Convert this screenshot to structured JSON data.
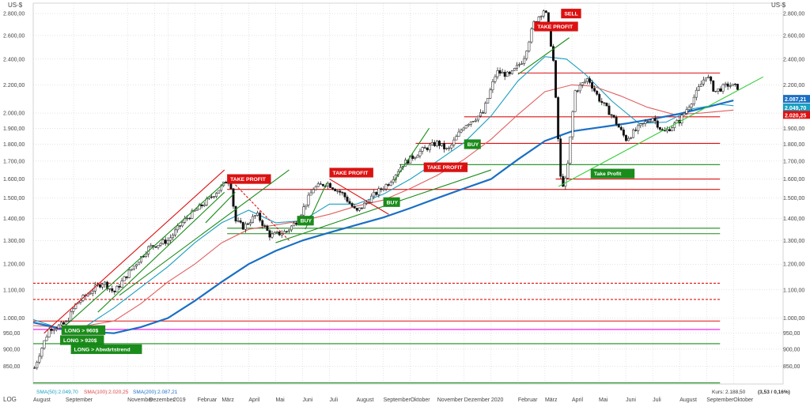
{
  "currency_label": "US-$",
  "scale_label": "LOG",
  "chart_data": {
    "type": "candlestick",
    "scale": "log",
    "ylim": [
      800,
      2900
    ],
    "y_ticks": [
      {
        "v": 800,
        "label": ""
      },
      {
        "v": 850,
        "label": "850,00"
      },
      {
        "v": 900,
        "label": "900,00"
      },
      {
        "v": 950,
        "label": "950,00"
      },
      {
        "v": 1000,
        "label": "1.000,00"
      },
      {
        "v": 1100,
        "label": "1.100,00"
      },
      {
        "v": 1200,
        "label": "1.200,00"
      },
      {
        "v": 1300,
        "label": "1.300,00"
      },
      {
        "v": 1400,
        "label": "1.400,00"
      },
      {
        "v": 1500,
        "label": "1.500,00"
      },
      {
        "v": 1600,
        "label": "1.600,00"
      },
      {
        "v": 1700,
        "label": "1.700,00"
      },
      {
        "v": 1800,
        "label": "1.800,00"
      },
      {
        "v": 1900,
        "label": "1.900,00"
      },
      {
        "v": 2000,
        "label": "2.000,00"
      },
      {
        "v": 2200,
        "label": "2.200,00"
      },
      {
        "v": 2400,
        "label": "2.400,00"
      },
      {
        "v": 2600,
        "label": "2.600,00"
      },
      {
        "v": 2800,
        "label": "2.800,00"
      }
    ],
    "x_ticks": [
      "August",
      "September",
      "November",
      "Dezember",
      "2019",
      "Februar",
      "März",
      "April",
      "Mai",
      "Juni",
      "Juli",
      "August",
      "September",
      "Oktober",
      "November",
      "Dezember",
      "2020",
      "Februar",
      "März",
      "April",
      "Mai",
      "Juni",
      "Juli",
      "August",
      "September",
      "Oktober"
    ],
    "x_tick_marks": [
      0.0,
      1.5,
      3.5,
      4.5,
      5.0,
      6.0,
      7.0,
      8.0,
      9.0,
      10.0,
      11.0,
      12.0,
      13.0,
      14.0,
      15.0,
      16.0,
      17.0,
      18.0,
      19.0,
      20.0,
      21.0,
      22.0,
      23.0,
      24.0,
      25.0,
      26.0
    ],
    "x_label_pos": [
      0.0,
      1.2,
      3.5,
      4.3,
      5.2,
      6.1,
      7.0,
      8.0,
      9.0,
      10.0,
      11.0,
      12.0,
      13.0,
      14.0,
      15.0,
      16.0,
      17.0,
      18.0,
      19.0,
      20.0,
      21.0,
      22.0,
      23.0,
      24.0,
      25.0,
      26.0
    ],
    "price_path": [
      [
        0.05,
        845
      ],
      [
        0.2,
        880
      ],
      [
        0.6,
        965
      ],
      [
        1.2,
        980
      ],
      [
        1.6,
        1050
      ],
      [
        2.2,
        1100
      ],
      [
        2.6,
        1130
      ],
      [
        3.0,
        1090
      ],
      [
        3.5,
        1160
      ],
      [
        4.3,
        1270
      ],
      [
        5.0,
        1300
      ],
      [
        5.6,
        1390
      ],
      [
        6.4,
        1480
      ],
      [
        7.0,
        1560
      ],
      [
        7.3,
        1610
      ],
      [
        7.5,
        1390
      ],
      [
        7.8,
        1360
      ],
      [
        8.3,
        1420
      ],
      [
        8.8,
        1320
      ],
      [
        9.4,
        1340
      ],
      [
        9.8,
        1390
      ],
      [
        10.4,
        1550
      ],
      [
        10.9,
        1580
      ],
      [
        11.5,
        1520
      ],
      [
        12.0,
        1430
      ],
      [
        12.6,
        1510
      ],
      [
        13.2,
        1580
      ],
      [
        13.7,
        1680
      ],
      [
        14.4,
        1760
      ],
      [
        15.0,
        1810
      ],
      [
        15.4,
        1760
      ],
      [
        16.0,
        1920
      ],
      [
        16.7,
        2000
      ],
      [
        17.2,
        2300
      ],
      [
        17.7,
        2270
      ],
      [
        18.2,
        2400
      ],
      [
        18.6,
        2720
      ],
      [
        19.0,
        2850
      ],
      [
        19.3,
        2420
      ],
      [
        19.6,
        1560
      ],
      [
        19.8,
        1600
      ],
      [
        20.1,
        2150
      ],
      [
        20.6,
        2250
      ],
      [
        21.0,
        2100
      ],
      [
        21.5,
        1980
      ],
      [
        22.0,
        1830
      ],
      [
        22.6,
        1920
      ],
      [
        23.0,
        1970
      ],
      [
        23.4,
        1870
      ],
      [
        24.0,
        1950
      ],
      [
        24.5,
        2100
      ],
      [
        25.0,
        2280
      ],
      [
        25.3,
        2150
      ],
      [
        25.8,
        2200
      ],
      [
        26.2,
        2180
      ]
    ],
    "series": [
      {
        "name": "SMA(50): 2.049,70",
        "color": "#1aa0c0",
        "values": [
          [
            0.0,
            995
          ],
          [
            1.0,
            965
          ],
          [
            2.0,
            975
          ],
          [
            3.0,
            1035
          ],
          [
            4.0,
            1110
          ],
          [
            5.0,
            1190
          ],
          [
            6.0,
            1290
          ],
          [
            7.0,
            1380
          ],
          [
            8.0,
            1440
          ],
          [
            9.0,
            1380
          ],
          [
            10.0,
            1390
          ],
          [
            11.0,
            1470
          ],
          [
            12.0,
            1470
          ],
          [
            13.0,
            1520
          ],
          [
            14.0,
            1600
          ],
          [
            15.0,
            1700
          ],
          [
            16.0,
            1810
          ],
          [
            17.0,
            1980
          ],
          [
            18.0,
            2230
          ],
          [
            19.0,
            2420
          ],
          [
            19.8,
            2400
          ],
          [
            20.5,
            2280
          ],
          [
            21.5,
            2080
          ],
          [
            22.5,
            1930
          ],
          [
            23.5,
            1940
          ],
          [
            24.5,
            2030
          ],
          [
            25.5,
            2060
          ],
          [
            26.0,
            2050
          ]
        ]
      },
      {
        "name": "SMA(100): 2.020,25",
        "color": "#e06060",
        "values": [
          [
            0.0,
            975
          ],
          [
            1.0,
            970
          ],
          [
            2.0,
            975
          ],
          [
            3.0,
            990
          ],
          [
            4.0,
            1050
          ],
          [
            5.0,
            1130
          ],
          [
            6.0,
            1200
          ],
          [
            7.0,
            1290
          ],
          [
            8.0,
            1350
          ],
          [
            9.0,
            1370
          ],
          [
            10.0,
            1390
          ],
          [
            11.0,
            1420
          ],
          [
            12.0,
            1460
          ],
          [
            13.0,
            1490
          ],
          [
            14.0,
            1550
          ],
          [
            15.0,
            1620
          ],
          [
            16.0,
            1710
          ],
          [
            17.0,
            1830
          ],
          [
            18.0,
            1990
          ],
          [
            19.0,
            2150
          ],
          [
            20.0,
            2200
          ],
          [
            20.8,
            2190
          ],
          [
            21.8,
            2120
          ],
          [
            22.8,
            2040
          ],
          [
            23.8,
            1990
          ],
          [
            24.8,
            2000
          ],
          [
            26.0,
            2020
          ]
        ]
      },
      {
        "name": "SMA(200): 2.087,21",
        "color": "#1a6fc4",
        "values": [
          [
            0.0,
            985
          ],
          [
            1.0,
            965
          ],
          [
            2.0,
            955
          ],
          [
            3.0,
            950
          ],
          [
            4.0,
            970
          ],
          [
            5.0,
            1000
          ],
          [
            6.0,
            1060
          ],
          [
            7.0,
            1130
          ],
          [
            8.0,
            1200
          ],
          [
            9.0,
            1255
          ],
          [
            10.0,
            1300
          ],
          [
            11.0,
            1335
          ],
          [
            12.0,
            1370
          ],
          [
            13.0,
            1405
          ],
          [
            14.0,
            1450
          ],
          [
            15.0,
            1500
          ],
          [
            16.0,
            1550
          ],
          [
            17.0,
            1600
          ],
          [
            18.0,
            1710
          ],
          [
            19.0,
            1820
          ],
          [
            20.0,
            1880
          ],
          [
            21.0,
            1905
          ],
          [
            22.0,
            1930
          ],
          [
            23.0,
            1960
          ],
          [
            24.0,
            1995
          ],
          [
            25.0,
            2040
          ],
          [
            26.0,
            2087
          ]
        ]
      }
    ],
    "horizontal_levels": [
      {
        "v": 2290,
        "x1": 18.0,
        "x2": 25.5,
        "color": "#dd1111",
        "dash": false
      },
      {
        "v": 1975,
        "x1": 16.0,
        "x2": 25.5,
        "color": "#dd1111",
        "dash": false
      },
      {
        "v": 1805,
        "x1": 14.2,
        "x2": 25.5,
        "color": "#dd1111",
        "dash": false
      },
      {
        "v": 1680,
        "x1": 13.6,
        "x2": 25.5,
        "color": "#1a8c1a",
        "dash": false
      },
      {
        "v": 1600,
        "x1": 19.4,
        "x2": 25.5,
        "color": "#dd1111",
        "dash": false
      },
      {
        "v": 1545,
        "x1": 7.2,
        "x2": 25.5,
        "color": "#dd1111",
        "dash": false
      },
      {
        "v": 1355,
        "x1": 7.2,
        "x2": 25.5,
        "color": "#1a8c1a",
        "dash": false
      },
      {
        "v": 1330,
        "x1": 7.2,
        "x2": 25.5,
        "color": "#1a8c1a",
        "dash": false
      },
      {
        "v": 1125,
        "x1": 0.0,
        "x2": 25.5,
        "color": "#dd1111",
        "dash": true
      },
      {
        "v": 1065,
        "x1": 0.0,
        "x2": 25.5,
        "color": "#dd1111",
        "dash": true
      },
      {
        "v": 990,
        "x1": 0.0,
        "x2": 25.5,
        "color": "#dd1111",
        "dash": false
      },
      {
        "v": 962,
        "x1": 0.0,
        "x2": 25.5,
        "color": "#ee11ee",
        "dash": false
      },
      {
        "v": 917,
        "x1": 0.0,
        "x2": 25.5,
        "color": "#1a8c1a",
        "dash": false
      },
      {
        "v": 803,
        "x1": 0.0,
        "x2": 25.5,
        "color": "#1a8c1a",
        "dash": false
      }
    ],
    "trend_lines": [
      {
        "color": "#dd1111",
        "dash": false,
        "p1": [
          0.4,
          950
        ],
        "p2": [
          7.1,
          1650
        ]
      },
      {
        "color": "#1a8c1a",
        "dash": false,
        "p1": [
          1.2,
          975
        ],
        "p2": [
          7.1,
          1580
        ]
      },
      {
        "color": "#1a8c1a",
        "dash": false,
        "p1": [
          2.4,
          1020
        ],
        "p2": [
          7.1,
          1530
        ]
      },
      {
        "color": "#1a8c1a",
        "dash": false,
        "p1": [
          3.2,
          1080
        ],
        "p2": [
          9.5,
          1650
        ]
      },
      {
        "color": "#1a8c1a",
        "dash": false,
        "p1": [
          6.4,
          1380
        ],
        "p2": [
          7.5,
          1530
        ]
      },
      {
        "color": "#dd1111",
        "dash": true,
        "p1": [
          7.3,
          1600
        ],
        "p2": [
          9.5,
          1300
        ]
      },
      {
        "color": "#1a8c1a",
        "dash": false,
        "p1": [
          9.0,
          1290
        ],
        "p2": [
          17.0,
          1650
        ]
      },
      {
        "color": "#1a8c1a",
        "dash": false,
        "p1": [
          10.1,
          1350
        ],
        "p2": [
          10.9,
          1580
        ]
      },
      {
        "color": "#dd1111",
        "dash": false,
        "p1": [
          11.0,
          1600
        ],
        "p2": [
          13.2,
          1420
        ]
      },
      {
        "color": "#1a8c1a",
        "dash": false,
        "p1": [
          13.4,
          1590
        ],
        "p2": [
          14.7,
          1900
        ]
      },
      {
        "color": "#1a8c1a",
        "dash": false,
        "p1": [
          18.0,
          2280
        ],
        "p2": [
          19.9,
          2580
        ]
      },
      {
        "color": "#33cc33",
        "dash": false,
        "p1": [
          19.5,
          1560
        ],
        "p2": [
          27.1,
          2260
        ]
      }
    ],
    "markers": [
      {
        "text": "TAKE PROFIT",
        "x": 7.2,
        "v": 1600,
        "bg": "#dd1111",
        "fg": "#ffffff"
      },
      {
        "text": "TAKE PROFIT",
        "x": 11.0,
        "v": 1635,
        "bg": "#dd1111",
        "fg": "#ffffff"
      },
      {
        "text": "TAKE PROFIT",
        "x": 14.5,
        "v": 1665,
        "bg": "#dd1111",
        "fg": "#ffffff"
      },
      {
        "text": "TAKE PROFIT",
        "x": 18.6,
        "v": 2680,
        "bg": "#dd1111",
        "fg": "#ffffff"
      },
      {
        "text": "SELL",
        "x": 19.6,
        "v": 2800,
        "bg": "#dd1111",
        "fg": "#ffffff"
      },
      {
        "text": "BUY",
        "x": 9.8,
        "v": 1390,
        "bg": "#1a8c1a",
        "fg": "#ffffff"
      },
      {
        "text": "BUY",
        "x": 13.0,
        "v": 1480,
        "bg": "#1a8c1a",
        "fg": "#ffffff"
      },
      {
        "text": "BUY",
        "x": 16.0,
        "v": 1800,
        "bg": "#1a8c1a",
        "fg": "#ffffff"
      },
      {
        "text": "Take Profit",
        "x": 20.7,
        "v": 1630,
        "bg": "#1a8c1a",
        "fg": "#ffffff"
      },
      {
        "text": "LONG > 960$",
        "x": 1.05,
        "v": 960,
        "bg": "#1a8c1a",
        "fg": "#ffffff"
      },
      {
        "text": "LONG > 920$",
        "x": 1.0,
        "v": 928,
        "bg": "#1a8c1a",
        "fg": "#ffffff"
      },
      {
        "text": "LONG > Abwärtstrend",
        "x": 1.4,
        "v": 900,
        "bg": "#1a8c1a",
        "fg": "#ffffff"
      }
    ],
    "right_labels": [
      {
        "text": "2.087,21",
        "v": 2087,
        "bg": "#1a6fc4"
      },
      {
        "text": "2.049,70",
        "v": 2049,
        "bg": "#1aa0c0"
      },
      {
        "text": "2.020,25",
        "v": 2020,
        "bg": "#dd1111"
      }
    ],
    "legend": [
      "SMA(50):2.049,70",
      "SMA(100):2.020,25",
      "SMA(200):2.087,21"
    ],
    "price_label": "Kurs: 2.188,50",
    "price_change": "(3,53 / 0,16%)"
  }
}
